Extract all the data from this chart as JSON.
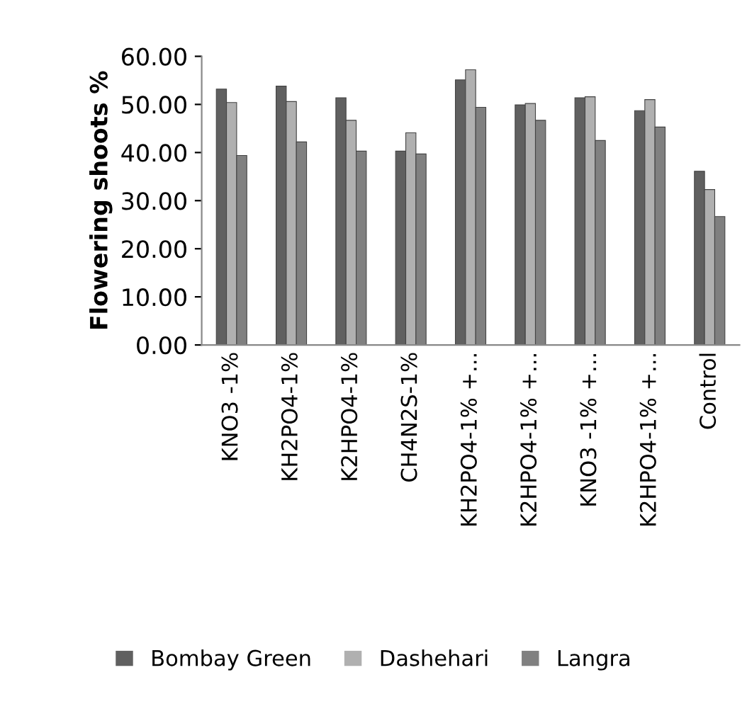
{
  "chart_data": {
    "type": "bar",
    "ylabel": "Flowering shoots %",
    "categories": [
      "KNO3 -1%",
      "KH2PO4-1%",
      "K2HPO4-1%",
      "CH4N2S-1%",
      "KH2PO4-1% +...",
      "K2HPO4-1% +...",
      "KNO3 -1% +...",
      "K2HPO4-1% +...",
      "Control"
    ],
    "series": [
      {
        "name": "Bombay Green",
        "color": "#606060",
        "values": [
          53.2,
          53.8,
          51.4,
          40.3,
          55.1,
          49.9,
          51.4,
          48.7,
          36.1
        ]
      },
      {
        "name": "Dashehari",
        "color": "#b0b0b0",
        "values": [
          50.4,
          50.6,
          46.7,
          44.1,
          57.2,
          50.2,
          51.6,
          51.0,
          32.3
        ]
      },
      {
        "name": "Langra",
        "color": "#808080",
        "values": [
          39.4,
          42.2,
          40.3,
          39.7,
          49.4,
          46.7,
          42.5,
          45.3,
          26.7
        ]
      }
    ],
    "ylim": [
      0,
      60
    ],
    "yticks": [
      {
        "value": 0,
        "label": "0.00"
      },
      {
        "value": 10,
        "label": "10.00"
      },
      {
        "value": 20,
        "label": "20.00"
      },
      {
        "value": 30,
        "label": "30.00"
      },
      {
        "value": 40,
        "label": "40.00"
      },
      {
        "value": 50,
        "label": "50.00"
      },
      {
        "value": 60,
        "label": "60.00"
      }
    ],
    "grid": false,
    "legend": "bottom"
  }
}
